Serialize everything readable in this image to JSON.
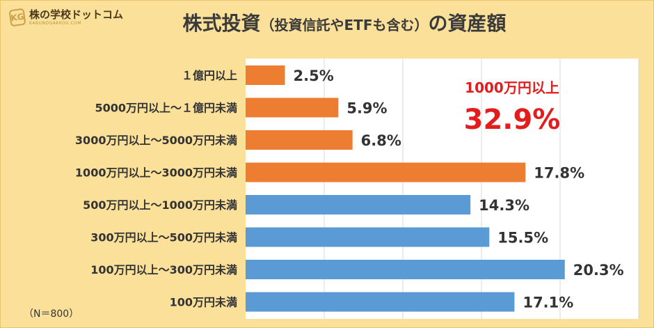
{
  "header": {
    "logo_name": "株の学校ドットコム",
    "logo_sub": "KABUNOGAKKOU.COM",
    "logo_mark": "KG",
    "title_main": "株式投資",
    "title_paren": "（投資信託やETFも含む）",
    "title_tail": "の資産額"
  },
  "note": "（N＝800）",
  "callout": {
    "label": "1000万円以上",
    "value": "32.9%"
  },
  "colors": {
    "highlight": "#ed7d31",
    "base": "#5b9bd5",
    "callout": "#e31d1d"
  },
  "chart_data": {
    "type": "bar",
    "orientation": "horizontal",
    "categories": [
      "１億円以上",
      "5000万円以上～１億円未満",
      "3000万円以上～5000万円未満",
      "1000万円以上～3000万円未満",
      "500万円以上～1000万円未満",
      "300万円以上～500万円未満",
      "100万円以上～300万円未満",
      "100万円未満"
    ],
    "values": [
      2.5,
      5.9,
      6.8,
      17.8,
      14.3,
      15.5,
      20.3,
      17.1
    ],
    "labels": [
      "2.5%",
      "5.9%",
      "6.8%",
      "17.8%",
      "14.3%",
      "15.5%",
      "20.3%",
      "17.1%"
    ],
    "highlight": [
      true,
      true,
      true,
      true,
      false,
      false,
      false,
      false
    ],
    "xlim": [
      0,
      25
    ],
    "grid": true,
    "unit": "%"
  }
}
